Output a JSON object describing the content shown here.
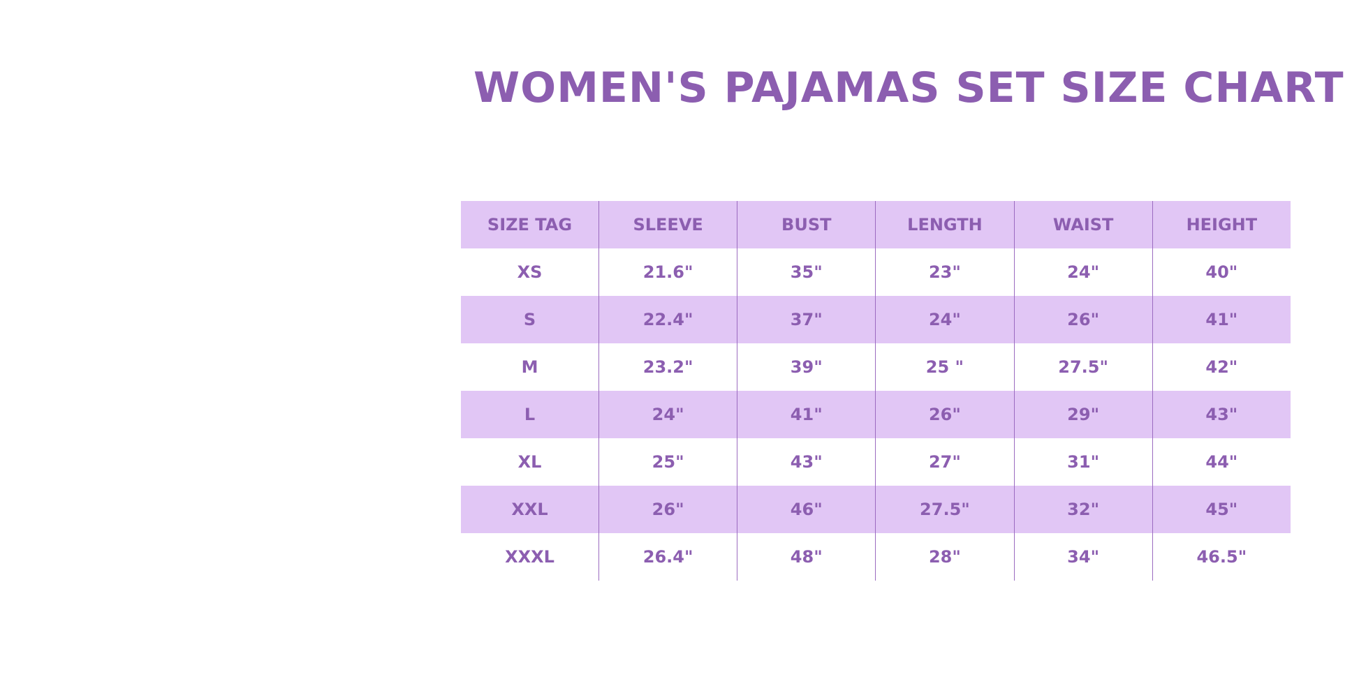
{
  "title": "WOMEN'S PAJAMAS SET SIZE CHART",
  "colors": {
    "text": "#8c5eb0",
    "header_bg": "#e1c6f5",
    "divider": "#9b6bc0"
  },
  "table": {
    "headers": [
      "SIZE TAG",
      "SLEEVE",
      "BUST",
      "LENGTH",
      "WAIST",
      "HEIGHT"
    ],
    "rows": [
      [
        "XS",
        "21.6\"",
        "35\"",
        "23\"",
        "24\"",
        "40\""
      ],
      [
        "S",
        "22.4\"",
        "37\"",
        "24\"",
        "26\"",
        "41\""
      ],
      [
        "M",
        "23.2\"",
        "39\"",
        "25 \"",
        "27.5\"",
        "42\""
      ],
      [
        "L",
        "24\"",
        "41\"",
        "26\"",
        "29\"",
        "43\""
      ],
      [
        "XL",
        "25\"",
        "43\"",
        "27\"",
        "31\"",
        "44\""
      ],
      [
        "XXL",
        "26\"",
        "46\"",
        "27.5\"",
        "32\"",
        "45\""
      ],
      [
        "XXXL",
        "26.4\"",
        "48\"",
        "28\"",
        "34\"",
        "46.5\""
      ]
    ]
  }
}
